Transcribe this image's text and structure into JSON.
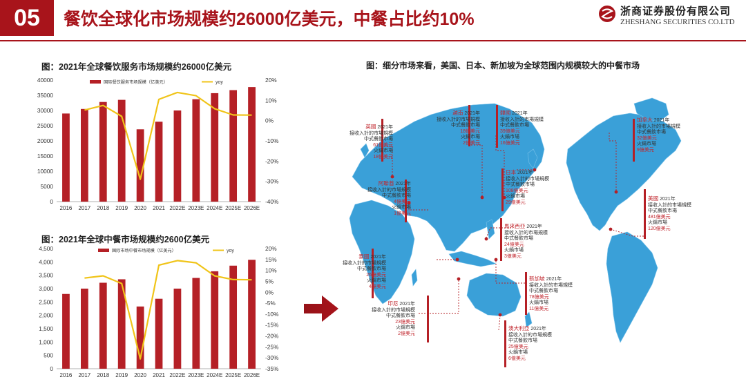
{
  "header": {
    "slide_number": "05",
    "title": "餐饮全球化市场规模约26000亿美元，中餐占比约10%",
    "logo_cn": "浙商证券股份有限公司",
    "logo_en": "ZHESHANG SECURITIES CO.LTD"
  },
  "colors": {
    "accent": "#a8141b",
    "bar": "#b52026",
    "line": "#f0c419",
    "ocean": "#ffffff",
    "land": "#3aa0d8"
  },
  "chart1_title": "图：2021年全球餐饮服务市场规模约26000亿美元",
  "chart2_title": "图：2021年全球中餐市场规模约2600亿美元",
  "map": {
    "title": "图：细分市场来看，美国、日本、新加坡为全球范围内规模较大的中餐市场",
    "callouts": [
      {
        "name": "英國",
        "lines": [
          "2021年",
          "接收入計的市場規模",
          "中式餐飲市場",
          "61億美元",
          "火鍋市場",
          "18億美元"
        ]
      },
      {
        "name": "越南",
        "lines": [
          "2021年",
          "接收入計的市場規模",
          "中式餐飲市場",
          "18億美元",
          "火鍋市場",
          "2億美元"
        ]
      },
      {
        "name": "韓國",
        "lines": [
          "2021年",
          "接收入計的市場規模",
          "中式餐飲市場",
          "39億美元",
          "火鍋市場",
          "16億美元"
        ]
      },
      {
        "name": "加拿大",
        "lines": [
          "2021年",
          "接收入計的市場規模",
          "中式餐飲市場",
          "32億美元",
          "火鍋市場",
          "9億美元"
        ]
      },
      {
        "name": "日本",
        "lines": [
          "2021年",
          "接收入計的市場規模",
          "中式餐飲市場",
          "108億美元",
          "火鍋市場",
          "29億美元"
        ]
      },
      {
        "name": "阿聯酋",
        "lines": [
          "2021年",
          "接收入計的市場規模",
          "中式餐飲市場",
          "4億美元",
          "火鍋市場",
          "1億美元"
        ]
      },
      {
        "name": "美國",
        "lines": [
          "2021年",
          "接收入計的市場規模",
          "中式餐飲市場",
          "481億美元",
          "火鍋市場",
          "120億美元"
        ]
      },
      {
        "name": "馬來西亞",
        "lines": [
          "2021年",
          "接收入計的市場規模",
          "中式餐飲市場",
          "24億美元",
          "火鍋市場",
          "3億美元"
        ]
      },
      {
        "name": "泰國",
        "lines": [
          "2021年",
          "接收入計的市場規模",
          "中式餐飲市場",
          "26億美元",
          "火鍋市場",
          "4億美元"
        ]
      },
      {
        "name": "新加坡",
        "lines": [
          "2021年",
          "接收入計的市場規模",
          "中式餐飲市場",
          "78億美元",
          "火鍋市場",
          "11億美元"
        ]
      },
      {
        "name": "印尼",
        "lines": [
          "2021年",
          "接收入計的市場規模",
          "中式餐飲市場",
          "23億美元",
          "火鍋市場",
          "2億美元"
        ]
      },
      {
        "name": "澳大利亞",
        "lines": [
          "2021年",
          "接收入計的市場規模",
          "中式餐飲市場",
          "25億美元",
          "火鍋市場",
          "6億美元"
        ]
      }
    ]
  },
  "chart_data": [
    {
      "type": "bar",
      "title": "图：2021年全球餐饮服务市场规模约26000亿美元",
      "categories": [
        "2016",
        "2017",
        "2018",
        "2019",
        "2020",
        "2021",
        "2022E",
        "2023E",
        "2024E",
        "2025E",
        "2026E"
      ],
      "series": [
        {
          "name": "国际餐饮服务市场规模（亿美元）",
          "type": "bar",
          "axis": "left",
          "values": [
            29000,
            30500,
            32800,
            33500,
            23800,
            26300,
            30000,
            33700,
            35700,
            36700,
            37700
          ]
        },
        {
          "name": "yoy",
          "type": "line",
          "axis": "right",
          "values": [
            null,
            5.2,
            7.5,
            2.1,
            -29.0,
            10.5,
            13.9,
            12.3,
            5.9,
            2.8,
            2.7
          ]
        }
      ],
      "ylim": [
        0,
        40000
      ],
      "y2lim": [
        -40,
        20
      ],
      "yticks": [
        "0",
        "5000",
        "10000",
        "15000",
        "20000",
        "25000",
        "30000",
        "35000",
        "40000"
      ],
      "y2ticks": [
        "-40%",
        "-30%",
        "-20%",
        "-10%",
        "0%",
        "10%",
        "20%"
      ],
      "legend": "top"
    },
    {
      "type": "bar",
      "title": "图：2021年全球中餐市场规模约2600亿美元",
      "categories": [
        "2016",
        "2017",
        "2018",
        "2019",
        "2020",
        "2021",
        "2022E",
        "2023E",
        "2024E",
        "2025E",
        "2026E"
      ],
      "series": [
        {
          "name": "国际市场中餐市场规模（亿美元）",
          "type": "bar",
          "axis": "left",
          "values": [
            2800,
            3000,
            3220,
            3350,
            2330,
            2620,
            3000,
            3400,
            3650,
            3860,
            4080
          ]
        },
        {
          "name": "yoy",
          "type": "line",
          "axis": "right",
          "values": [
            null,
            6.5,
            7.5,
            4.0,
            -30.5,
            12.4,
            14.5,
            13.5,
            7.5,
            5.8,
            5.7
          ]
        }
      ],
      "ylim": [
        0,
        4500
      ],
      "y2lim": [
        -35,
        20
      ],
      "yticks": [
        "0",
        "500",
        "1,000",
        "1,500",
        "2,000",
        "2,500",
        "3,000",
        "3,500",
        "4,000",
        "4,500"
      ],
      "y2ticks": [
        "-35%",
        "-30%",
        "-25%",
        "-20%",
        "-15%",
        "-10%",
        "-5%",
        "0%",
        "5%",
        "10%",
        "15%",
        "20%"
      ],
      "legend": "top"
    }
  ]
}
